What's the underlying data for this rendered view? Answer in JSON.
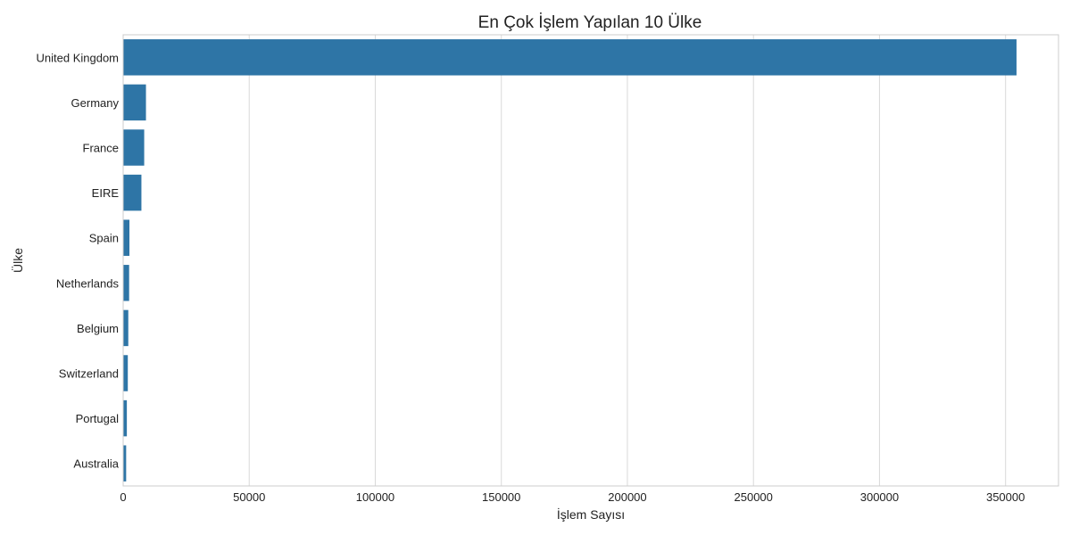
{
  "chart_data": {
    "type": "bar",
    "orientation": "horizontal",
    "title": "En Çok İşlem Yapılan 10 Ülke",
    "xlabel": "İşlem Sayısı",
    "ylabel": "Ülke",
    "categories": [
      "United Kingdom",
      "Germany",
      "France",
      "EIRE",
      "Spain",
      "Netherlands",
      "Belgium",
      "Switzerland",
      "Portugal",
      "Australia"
    ],
    "values": [
      354345,
      9042,
      8342,
      7238,
      2485,
      2363,
      2031,
      1842,
      1462,
      1185
    ],
    "xlim": [
      0,
      371000
    ],
    "xticks": [
      "0",
      "50000",
      "100000",
      "150000",
      "200000",
      "250000",
      "300000",
      "350000"
    ],
    "grid": "vertical",
    "colors": {
      "bar": "#2e75a6",
      "grid": "#d9d9d9",
      "frame": "#cccccc"
    }
  }
}
